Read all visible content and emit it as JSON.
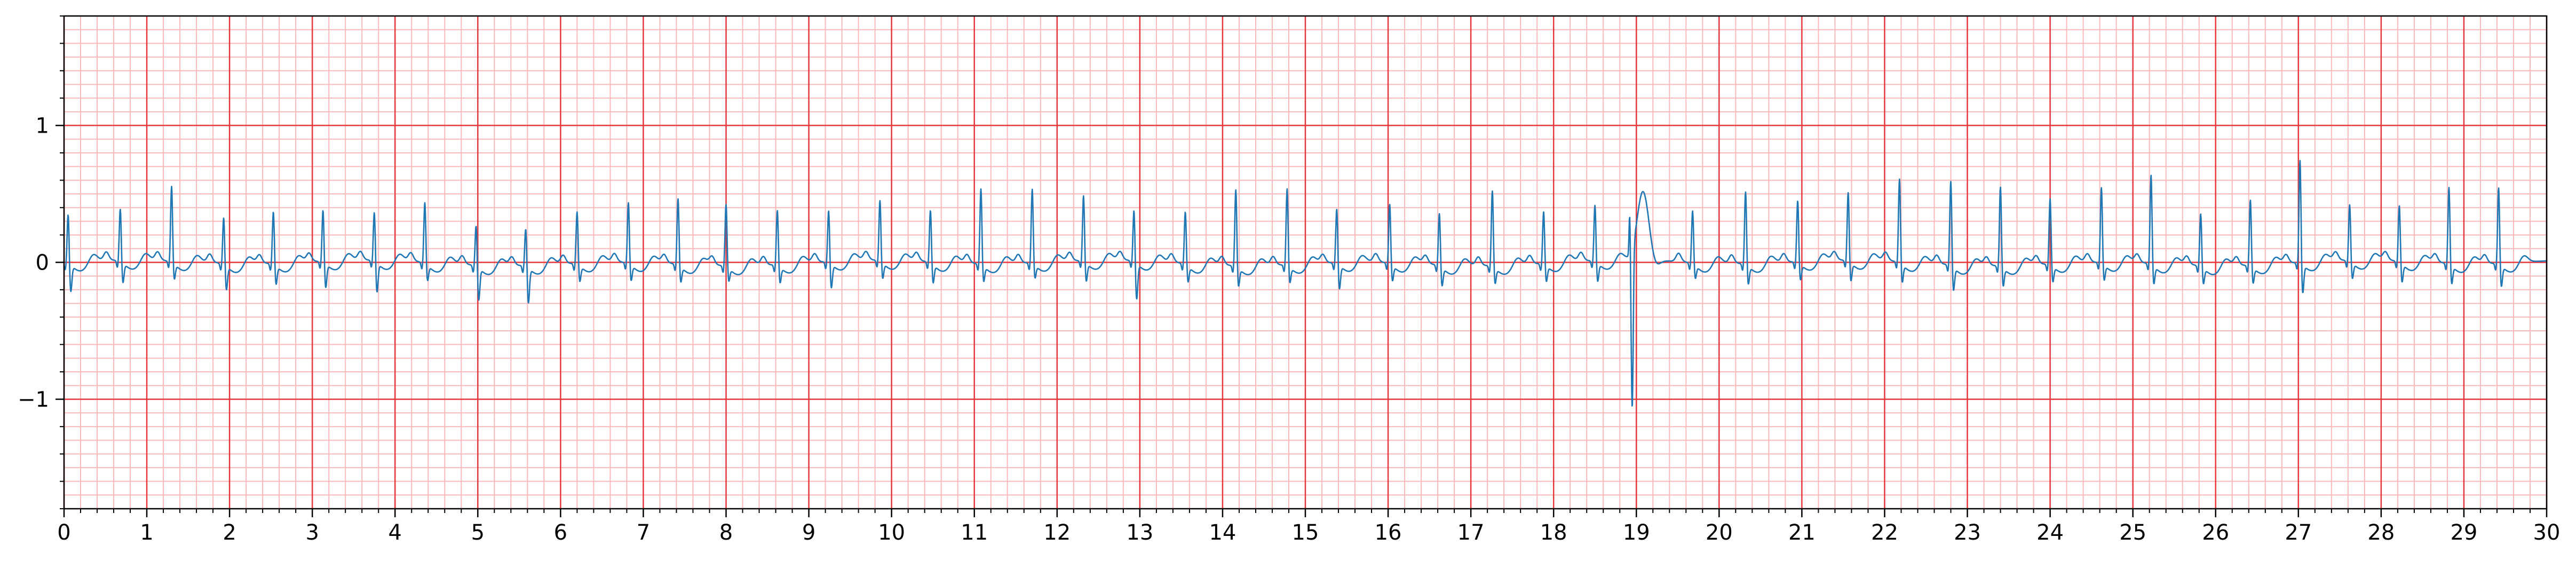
{
  "chart_data": {
    "type": "line",
    "title": "",
    "xlabel": "",
    "ylabel": "",
    "xlim": [
      0,
      30
    ],
    "ylim": [
      -1.8,
      1.8
    ],
    "x_ticks": [
      0,
      1,
      2,
      3,
      4,
      5,
      6,
      7,
      8,
      9,
      10,
      11,
      12,
      13,
      14,
      15,
      16,
      17,
      18,
      19,
      20,
      21,
      22,
      23,
      24,
      25,
      26,
      27,
      28,
      29,
      30
    ],
    "x_tick_labels": [
      "0",
      "1",
      "2",
      "3",
      "4",
      "5",
      "6",
      "7",
      "8",
      "9",
      "10",
      "11",
      "12",
      "13",
      "14",
      "15",
      "16",
      "17",
      "18",
      "19",
      "20",
      "21",
      "22",
      "23",
      "24",
      "25",
      "26",
      "27",
      "28",
      "29",
      "30"
    ],
    "y_ticks": [
      -1,
      0,
      1
    ],
    "y_tick_labels": [
      "−1",
      "0",
      "1"
    ],
    "grid": {
      "major": true,
      "minor": true,
      "major_x_step": 1,
      "minor_x_step": 0.2,
      "major_y_step": 1,
      "minor_y_step": 0.1
    },
    "colors": {
      "major_grid": "#e8373c",
      "minor_grid": "#f9b9bb",
      "trace": "#1f77b4",
      "axes": "#000000"
    },
    "series": [
      {
        "beats": [
          {
            "t": 0.05,
            "r": 0.38,
            "s": -0.2
          },
          {
            "t": 0.68,
            "r": 0.4,
            "s": -0.15
          },
          {
            "t": 1.3,
            "r": 0.57,
            "s": -0.12
          },
          {
            "t": 1.93,
            "r": 0.36,
            "s": -0.18
          },
          {
            "t": 2.53,
            "r": 0.4,
            "s": -0.14
          },
          {
            "t": 3.13,
            "r": 0.4,
            "s": -0.18
          },
          {
            "t": 3.75,
            "r": 0.38,
            "s": -0.22
          },
          {
            "t": 4.36,
            "r": 0.46,
            "s": -0.12
          },
          {
            "t": 4.98,
            "r": 0.32,
            "s": -0.24
          },
          {
            "t": 5.58,
            "r": 0.3,
            "s": -0.26
          },
          {
            "t": 6.2,
            "r": 0.4,
            "s": -0.12
          },
          {
            "t": 6.82,
            "r": 0.46,
            "s": -0.12
          },
          {
            "t": 7.42,
            "r": 0.5,
            "s": -0.12
          },
          {
            "t": 8.0,
            "r": 0.47,
            "s": -0.1
          },
          {
            "t": 8.62,
            "r": 0.42,
            "s": -0.12
          },
          {
            "t": 9.24,
            "r": 0.4,
            "s": -0.18
          },
          {
            "t": 9.86,
            "r": 0.46,
            "s": -0.12
          },
          {
            "t": 10.47,
            "r": 0.4,
            "s": -0.14
          },
          {
            "t": 11.08,
            "r": 0.57,
            "s": -0.12
          },
          {
            "t": 11.7,
            "r": 0.56,
            "s": -0.1
          },
          {
            "t": 12.32,
            "r": 0.5,
            "s": -0.14
          },
          {
            "t": 12.93,
            "r": 0.4,
            "s": -0.27
          },
          {
            "t": 13.55,
            "r": 0.4,
            "s": -0.12
          },
          {
            "t": 14.16,
            "r": 0.58,
            "s": -0.14
          },
          {
            "t": 14.78,
            "r": 0.58,
            "s": -0.12
          },
          {
            "t": 15.38,
            "r": 0.42,
            "s": -0.18
          },
          {
            "t": 16.02,
            "r": 0.45,
            "s": -0.12
          },
          {
            "t": 16.62,
            "r": 0.4,
            "s": -0.14
          },
          {
            "t": 17.26,
            "r": 0.57,
            "s": -0.12
          },
          {
            "t": 17.88,
            "r": 0.4,
            "s": -0.12
          },
          {
            "t": 18.5,
            "r": 0.43,
            "s": -0.14
          },
          {
            "t": 19.08,
            "r": 0.48,
            "s": -0.05,
            "ventricular": true
          },
          {
            "t": 19.68,
            "r": 0.4,
            "s": -0.1
          },
          {
            "t": 20.32,
            "r": 0.55,
            "s": -0.14
          },
          {
            "t": 20.95,
            "r": 0.47,
            "s": -0.12
          },
          {
            "t": 21.56,
            "r": 0.52,
            "s": -0.14
          },
          {
            "t": 22.18,
            "r": 0.63,
            "s": -0.14
          },
          {
            "t": 22.8,
            "r": 0.64,
            "s": -0.18
          },
          {
            "t": 23.4,
            "r": 0.6,
            "s": -0.14
          },
          {
            "t": 24.0,
            "r": 0.5,
            "s": -0.12
          },
          {
            "t": 24.62,
            "r": 0.57,
            "s": -0.12
          },
          {
            "t": 25.22,
            "r": 0.67,
            "s": -0.14
          },
          {
            "t": 25.82,
            "r": 0.4,
            "s": -0.12
          },
          {
            "t": 26.42,
            "r": 0.5,
            "s": -0.12
          },
          {
            "t": 27.02,
            "r": 0.78,
            "s": -0.22
          },
          {
            "t": 27.62,
            "r": 0.43,
            "s": -0.12
          },
          {
            "t": 28.22,
            "r": 0.43,
            "s": -0.14
          },
          {
            "t": 28.82,
            "r": 0.58,
            "s": -0.14
          },
          {
            "t": 29.42,
            "r": 0.58,
            "s": -0.16
          }
        ],
        "ectopic": {
          "t": 18.95,
          "q_peak": -1.17,
          "q_start": 0.32
        }
      }
    ]
  }
}
